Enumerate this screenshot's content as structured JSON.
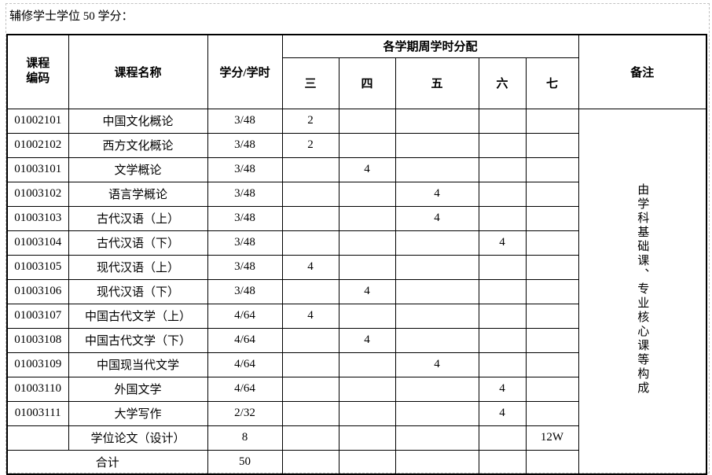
{
  "caption": "辅修学士学位 50 学分：",
  "table": {
    "header": {
      "code": "课程\n编码",
      "name": "课程名称",
      "credit": "学分/学时",
      "semester_group": "各学期周学时分配",
      "semesters": [
        "三",
        "四",
        "五",
        "六",
        "七"
      ],
      "remark": "备注"
    },
    "remark": "由学科基础课、专业核心课等构成",
    "rows": [
      {
        "code": "01002101",
        "name": "中国文化概论",
        "credit": "3/48",
        "hours": [
          "2",
          "",
          "",
          "",
          ""
        ]
      },
      {
        "code": "01002102",
        "name": "西方文化概论",
        "credit": "3/48",
        "hours": [
          "2",
          "",
          "",
          "",
          ""
        ]
      },
      {
        "code": "01003101",
        "name": "文学概论",
        "credit": "3/48",
        "hours": [
          "",
          "4",
          "",
          "",
          ""
        ]
      },
      {
        "code": "01003102",
        "name": "语言学概论",
        "credit": "3/48",
        "hours": [
          "",
          "",
          "4",
          "",
          ""
        ]
      },
      {
        "code": "01003103",
        "name": "古代汉语（上）",
        "credit": "3/48",
        "hours": [
          "",
          "",
          "4",
          "",
          ""
        ]
      },
      {
        "code": "01003104",
        "name": "古代汉语（下）",
        "credit": "3/48",
        "hours": [
          "",
          "",
          "",
          "4",
          ""
        ]
      },
      {
        "code": "01003105",
        "name": "现代汉语（上）",
        "credit": "3/48",
        "hours": [
          "4",
          "",
          "",
          "",
          ""
        ]
      },
      {
        "code": "01003106",
        "name": "现代汉语（下）",
        "credit": "3/48",
        "hours": [
          "",
          "4",
          "",
          "",
          ""
        ]
      },
      {
        "code": "01003107",
        "name": "中国古代文学（上）",
        "credit": "4/64",
        "hours": [
          "4",
          "",
          "",
          "",
          ""
        ]
      },
      {
        "code": "01003108",
        "name": "中国古代文学（下）",
        "credit": "4/64",
        "hours": [
          "",
          "4",
          "",
          "",
          ""
        ]
      },
      {
        "code": "01003109",
        "name": "中国现当代文学",
        "credit": "4/64",
        "hours": [
          "",
          "",
          "4",
          "",
          ""
        ]
      },
      {
        "code": "01003110",
        "name": "外国文学",
        "credit": "4/64",
        "hours": [
          "",
          "",
          "",
          "4",
          ""
        ]
      },
      {
        "code": "01003111",
        "name": "大学写作",
        "credit": "2/32",
        "hours": [
          "",
          "",
          "",
          "4",
          ""
        ]
      },
      {
        "code": "",
        "name": "学位论文（设计）",
        "credit": "8",
        "hours": [
          "",
          "",
          "",
          "",
          "12W"
        ]
      },
      {
        "merged": true,
        "name": "合计",
        "credit": "50",
        "hours": [
          "",
          "",
          "",
          "",
          ""
        ]
      }
    ]
  },
  "colors": {
    "border": "#000000",
    "frame_dash": "#c3c3c3",
    "text": "#000000",
    "background": "#ffffff"
  }
}
